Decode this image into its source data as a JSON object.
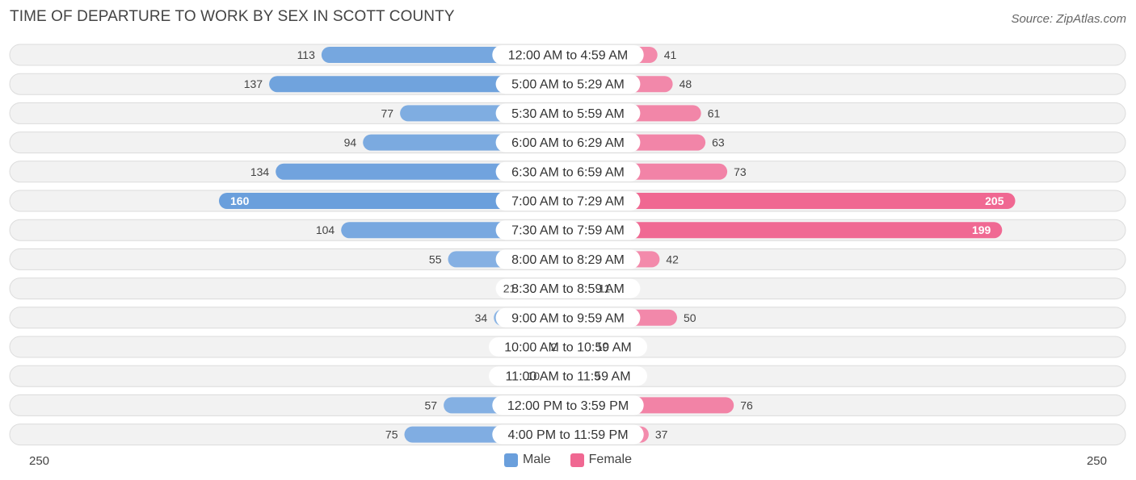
{
  "title": "TIME OF DEPARTURE TO WORK BY SEX IN SCOTT COUNTY",
  "source": "Source: ZipAtlas.com",
  "colors": {
    "male_light": "#a9c8ec",
    "male_dark": "#6a9fdc",
    "female_light": "#f5a9c3",
    "female_dark": "#f06892",
    "row_bg": "#f2f2f2",
    "row_border": "#dcdcdc"
  },
  "chart_data": {
    "type": "bar",
    "orientation": "horizontal-diverging",
    "title": "TIME OF DEPARTURE TO WORK BY SEX IN SCOTT COUNTY",
    "categories": [
      "12:00 AM to 4:59 AM",
      "5:00 AM to 5:29 AM",
      "5:30 AM to 5:59 AM",
      "6:00 AM to 6:29 AM",
      "6:30 AM to 6:59 AM",
      "7:00 AM to 7:29 AM",
      "7:30 AM to 7:59 AM",
      "8:00 AM to 8:29 AM",
      "8:30 AM to 8:59 AM",
      "9:00 AM to 9:59 AM",
      "10:00 AM to 10:59 AM",
      "11:00 AM to 11:59 AM",
      "12:00 PM to 3:59 PM",
      "4:00 PM to 11:59 PM"
    ],
    "series": [
      {
        "name": "Male",
        "values": [
          113,
          137,
          77,
          94,
          134,
          160,
          104,
          55,
          21,
          34,
          2,
          10,
          57,
          75
        ]
      },
      {
        "name": "Female",
        "values": [
          41,
          48,
          61,
          63,
          73,
          205,
          199,
          42,
          11,
          50,
          10,
          9,
          76,
          37
        ]
      }
    ],
    "axis_max": 250,
    "axis_left_label": "250",
    "axis_right_label": "250",
    "legend_position": "bottom-center"
  },
  "legend": {
    "male": "Male",
    "female": "Female"
  }
}
